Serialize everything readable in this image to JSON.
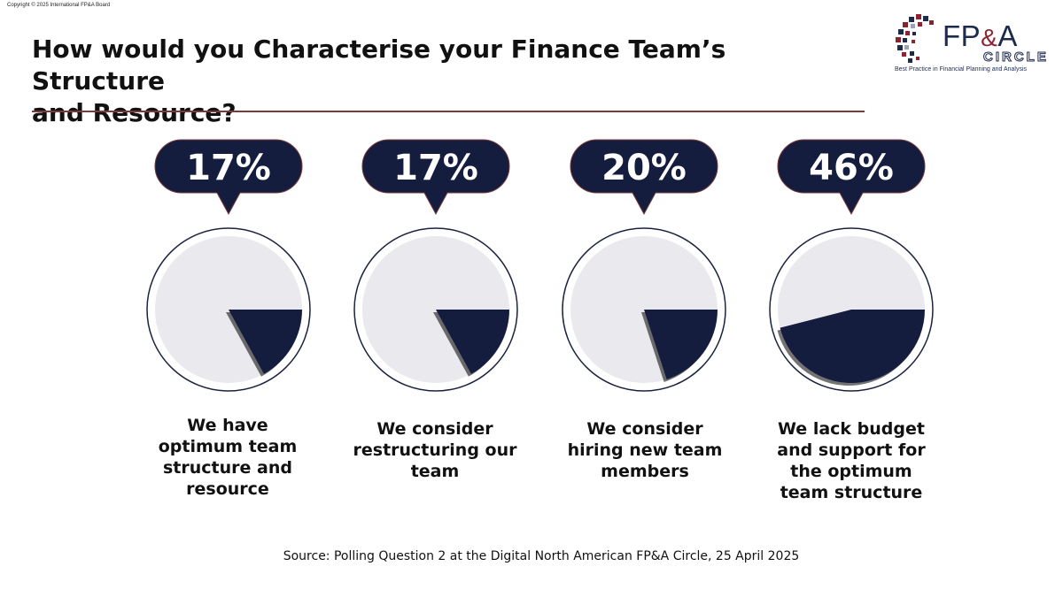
{
  "copyright": "Copyright © 2025 International FP&A Board",
  "title_line1": "How would you Characterise your Finance Team’s Structure",
  "title_line2": "and Resource?",
  "logo": {
    "fpa_text": "FP",
    "amp": "&",
    "a_text": "A",
    "circle_text": "CIRCLE",
    "tagline": "Best Practice in Financial Planning and Analysis"
  },
  "colors": {
    "navy": "#151d3f",
    "pie_bg": "#e9e9ee",
    "ring": "#1b2240",
    "rule": "#7a3a3a"
  },
  "chart_data": {
    "type": "pie",
    "unit": "%",
    "items": [
      {
        "label": "We have optimum team structure and resource",
        "percent": 17,
        "value_text": "17%"
      },
      {
        "label": "We consider restructuring our team",
        "percent": 17,
        "value_text": "17%"
      },
      {
        "label": "We consider hiring new team members",
        "percent": 20,
        "value_text": "20%"
      },
      {
        "label": "We lack budget and support for the optimum team structure",
        "percent": 46,
        "value_text": "46%"
      }
    ]
  },
  "labels": {
    "l0": [
      "We have",
      "optimum team",
      "structure and",
      "resource"
    ],
    "l1": [
      "We consider",
      "restructuring our",
      "team"
    ],
    "l2": [
      "We consider",
      "hiring new team",
      "members"
    ],
    "l3": [
      "We lack budget",
      "and support for",
      "the optimum",
      "team structure"
    ]
  },
  "source": "Source: Polling Question 2 at the Digital North American FP&A Circle, 25 April 2025"
}
